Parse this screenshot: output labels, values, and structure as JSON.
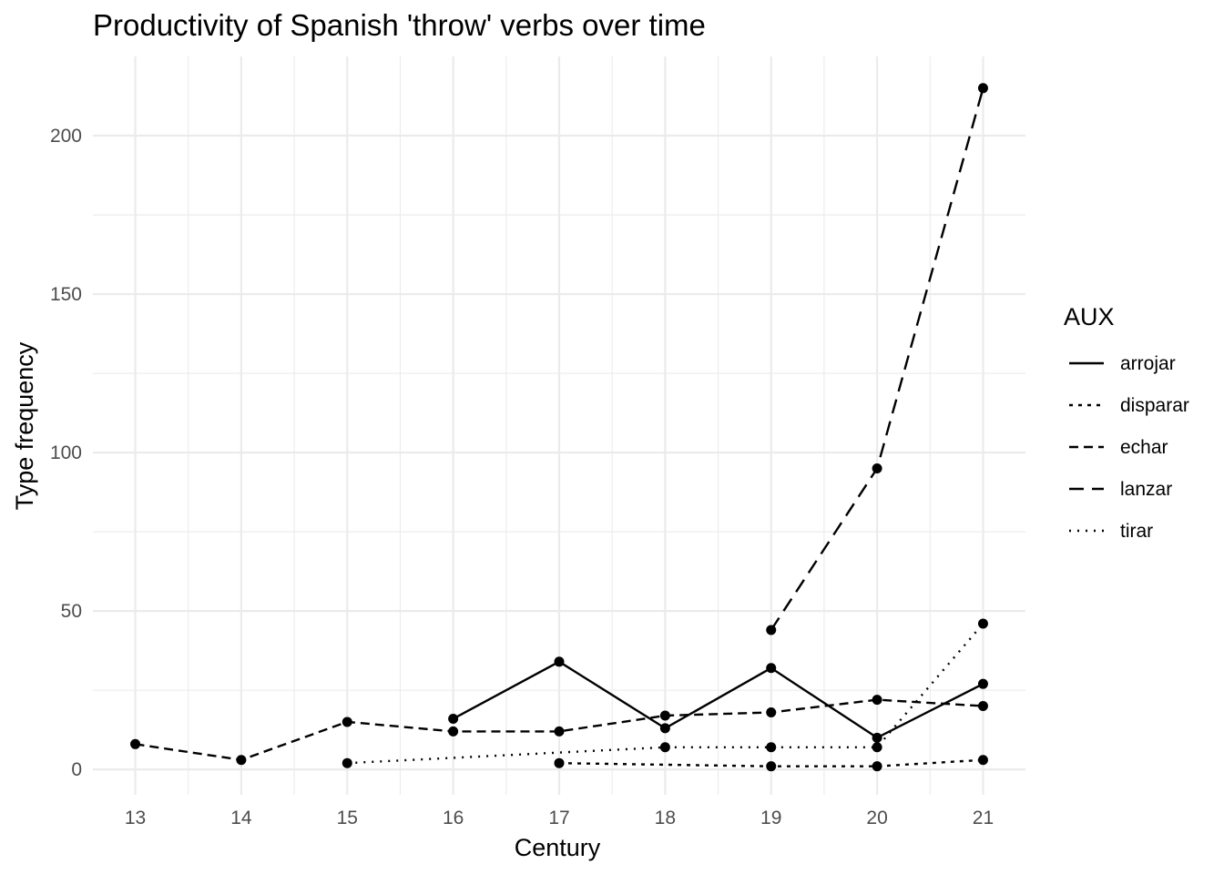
{
  "chart_data": {
    "type": "line",
    "title": "Productivity of Spanish 'throw' verbs over time",
    "xlabel": "Century",
    "ylabel": "Type frequency",
    "x": [
      13,
      14,
      15,
      16,
      17,
      18,
      19,
      20,
      21
    ],
    "xlim": [
      12.6,
      21.4
    ],
    "ylim": [
      -8,
      225
    ],
    "yticks": [
      0,
      50,
      100,
      150,
      200
    ],
    "grid": true,
    "legend": {
      "title": "AUX",
      "position": "right"
    },
    "series": [
      {
        "name": "arrojar",
        "linestyle": "solid",
        "points": [
          [
            16,
            16
          ],
          [
            17,
            34
          ],
          [
            18,
            13
          ],
          [
            19,
            32
          ],
          [
            20,
            10
          ],
          [
            21,
            27
          ]
        ]
      },
      {
        "name": "disparar",
        "linestyle": "dotted-dense",
        "points": [
          [
            17,
            2
          ],
          [
            19,
            1
          ],
          [
            20,
            1
          ],
          [
            21,
            3
          ]
        ]
      },
      {
        "name": "echar",
        "linestyle": "dashed",
        "points": [
          [
            13,
            8
          ],
          [
            14,
            3
          ],
          [
            15,
            15
          ],
          [
            16,
            12
          ],
          [
            17,
            12
          ],
          [
            18,
            17
          ],
          [
            19,
            18
          ],
          [
            20,
            22
          ],
          [
            21,
            20
          ]
        ]
      },
      {
        "name": "lanzar",
        "linestyle": "long-dashed",
        "points": [
          [
            19,
            44
          ],
          [
            20,
            95
          ],
          [
            21,
            215
          ]
        ]
      },
      {
        "name": "tirar",
        "linestyle": "dotted",
        "points": [
          [
            15,
            2
          ],
          [
            18,
            7
          ],
          [
            19,
            7
          ],
          [
            20,
            7
          ],
          [
            21,
            46
          ]
        ]
      }
    ]
  }
}
